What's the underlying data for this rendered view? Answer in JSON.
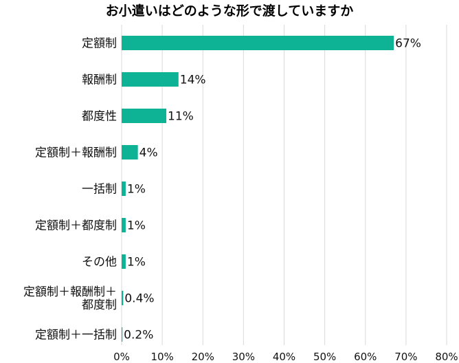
{
  "chart_data": {
    "type": "bar",
    "orientation": "horizontal",
    "title": "お小遣いはどのような形で渡していますか",
    "categories": [
      [
        "定額制"
      ],
      [
        "報酬制"
      ],
      [
        "都度性"
      ],
      [
        "定額制＋報酬制"
      ],
      [
        "一括制"
      ],
      [
        "定額制＋都度制"
      ],
      [
        "その他"
      ],
      [
        "定額制＋報酬制＋",
        "都度制"
      ],
      [
        "定額制＋一括制"
      ]
    ],
    "values": [
      67,
      14,
      11,
      4,
      1,
      1,
      1,
      0.4,
      0.2
    ],
    "value_labels": [
      "67%",
      "14%",
      "11%",
      "4%",
      "1%",
      "1%",
      "1%",
      "0.4%",
      "0.2%"
    ],
    "xlim": [
      0,
      80
    ],
    "x_ticks": [
      "0%",
      "10%",
      "20%",
      "30%",
      "40%",
      "50%",
      "60%",
      "70%",
      "80%"
    ],
    "grid": true,
    "legend": "none",
    "colors": {
      "bar": "#0db394",
      "grid": "#d9d9d9",
      "text": "#111111"
    }
  }
}
